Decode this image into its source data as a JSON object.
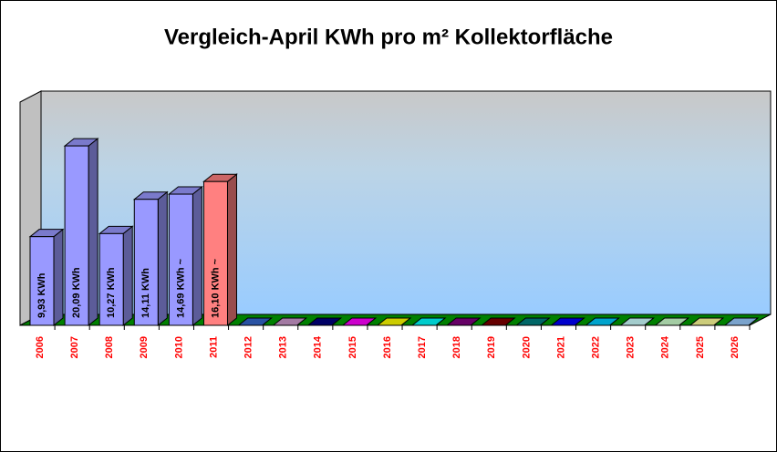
{
  "chart_data": {
    "type": "bar3d",
    "title": "Vergleich-April KWh pro m² Kollektorfläche",
    "categories": [
      "2006",
      "2007",
      "2008",
      "2009",
      "2010",
      "2011",
      "2012",
      "2013",
      "2014",
      "2015",
      "2016",
      "2017",
      "2018",
      "2019",
      "2020",
      "2021",
      "2022",
      "2023",
      "2024",
      "2025",
      "2026"
    ],
    "values": [
      9.93,
      20.09,
      10.27,
      14.11,
      14.69,
      16.1,
      0,
      0,
      0,
      0,
      0,
      0,
      0,
      0,
      0,
      0,
      0,
      0,
      0,
      0,
      0
    ],
    "value_labels": [
      "9,93 KWh",
      "20,09 KWh",
      "10,27 KWh",
      "14,11 KWh",
      "14,69 KWh ~",
      "16,10 KWh ~",
      null,
      null,
      null,
      null,
      null,
      null,
      null,
      null,
      null,
      null,
      null,
      null,
      null,
      null,
      null
    ],
    "colors": [
      "#9999ff",
      "#9999ff",
      "#9999ff",
      "#9999ff",
      "#9999ff",
      "#ff8080",
      "#3366cc",
      "#cc99cc",
      "#000080",
      "#ff00ff",
      "#ffff00",
      "#00ffff",
      "#800080",
      "#800000",
      "#008080",
      "#0000ff",
      "#00ccff",
      "#ccffff",
      "#ccffcc",
      "#ffff99",
      "#99ccff"
    ],
    "ylim": [
      0,
      25
    ]
  }
}
